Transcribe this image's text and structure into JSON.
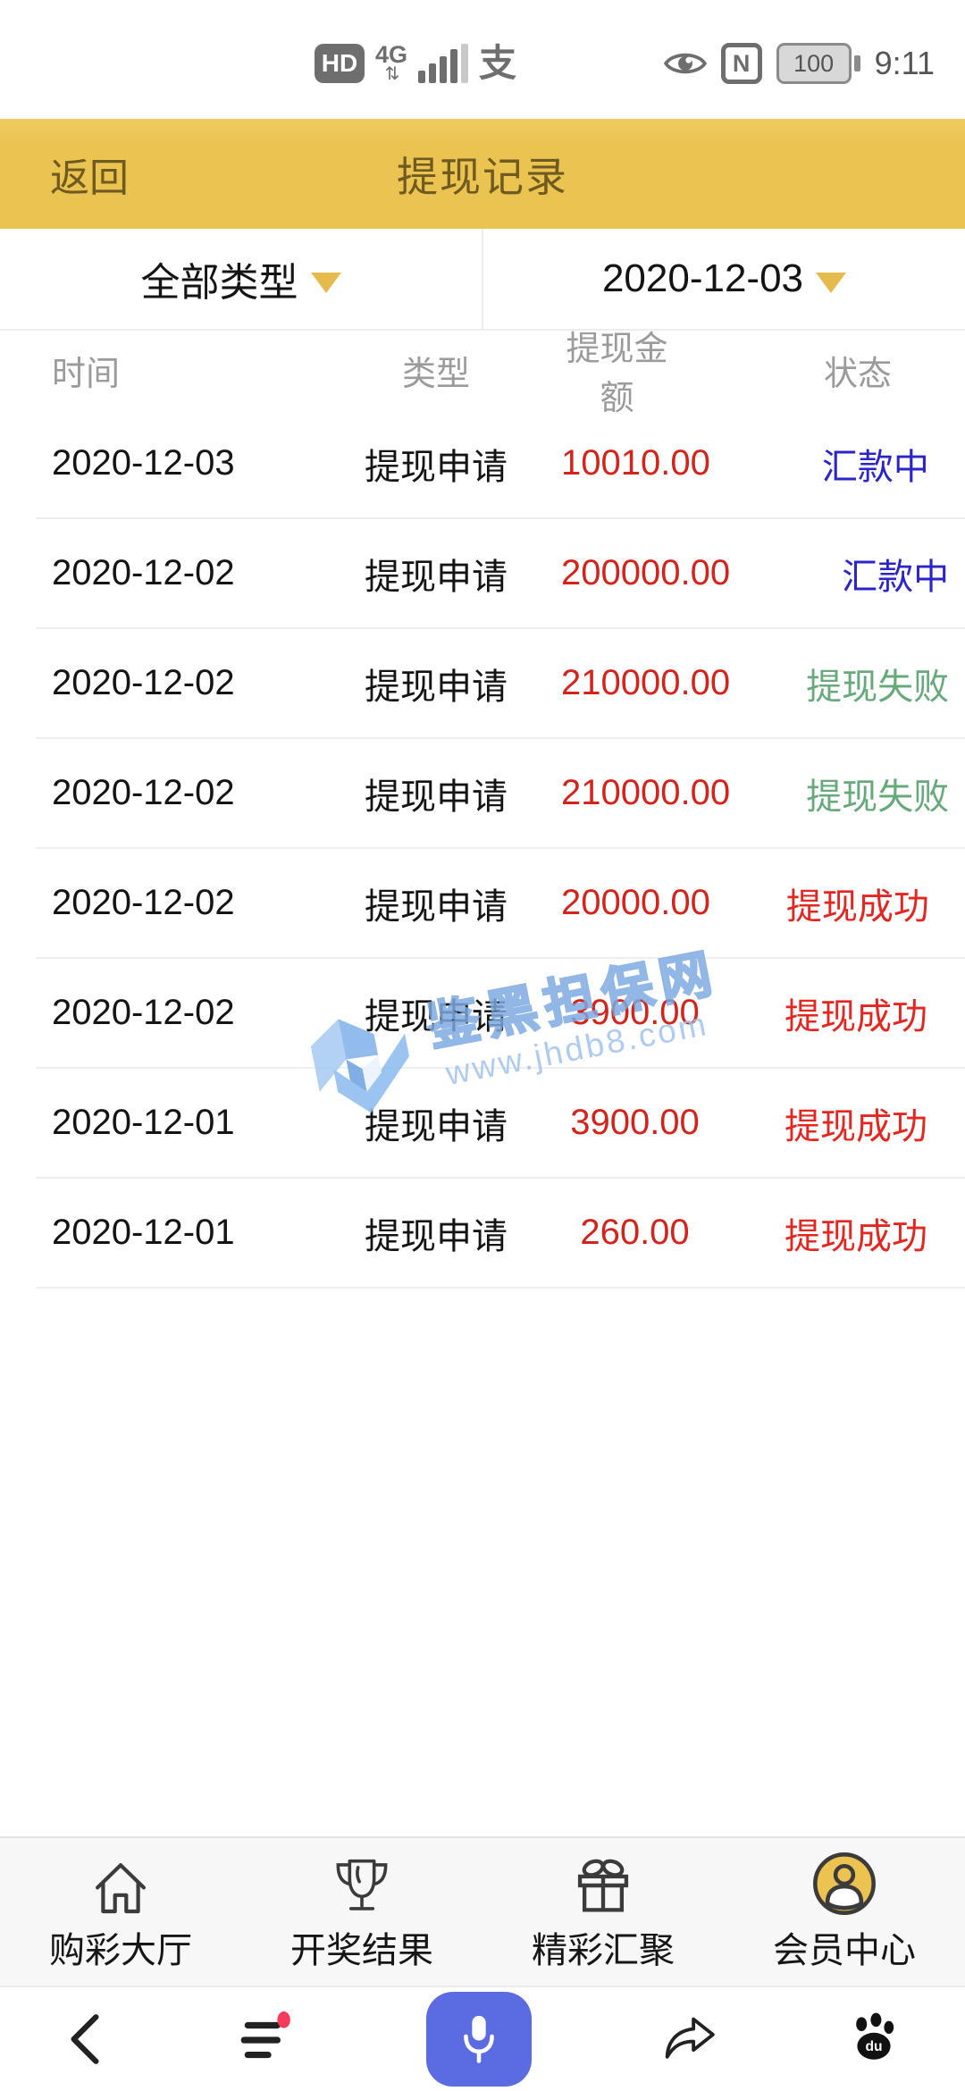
{
  "colors": {
    "accent_yellow": "#EBC351",
    "appbar_text": "#6F5B20",
    "amount_red": "#D3241C",
    "status_blue": "#2B25C8",
    "status_green": "#67A97B",
    "status_red": "#E42620",
    "mic_blue": "#5B6BE1",
    "watermark_blue": "#A4C6EE"
  },
  "status_bar": {
    "hd_label": "HD",
    "network_type": "4G",
    "network_arrows": "⇅",
    "alipay_glyph": "支",
    "nfc_letter": "N",
    "battery_level": "100",
    "time": "9:11"
  },
  "app_bar": {
    "back_label": "返回",
    "title": "提现记录"
  },
  "filters": {
    "type_selected": "全部类型",
    "date_selected": "2020-12-03"
  },
  "table": {
    "headers": [
      "时间",
      "类型",
      "提现金额",
      "状态"
    ],
    "rows": [
      {
        "date": "2020-12-03",
        "type": "提现申请",
        "amount": "10010.00",
        "status": "汇款中",
        "status_color": "#2B25C8"
      },
      {
        "date": "2020-12-02",
        "type": "提现申请",
        "amount": "200000.00",
        "status": "汇款中",
        "status_color": "#2B25C8"
      },
      {
        "date": "2020-12-02",
        "type": "提现申请",
        "amount": "210000.00",
        "status": "提现失败",
        "status_color": "#67A97B"
      },
      {
        "date": "2020-12-02",
        "type": "提现申请",
        "amount": "210000.00",
        "status": "提现失败",
        "status_color": "#67A97B"
      },
      {
        "date": "2020-12-02",
        "type": "提现申请",
        "amount": "20000.00",
        "status": "提现成功",
        "status_color": "#E42620"
      },
      {
        "date": "2020-12-02",
        "type": "提现申请",
        "amount": "3900.00",
        "status": "提现成功",
        "status_color": "#E42620"
      },
      {
        "date": "2020-12-01",
        "type": "提现申请",
        "amount": "3900.00",
        "status": "提现成功",
        "status_color": "#E42620"
      },
      {
        "date": "2020-12-01",
        "type": "提现申请",
        "amount": "260.00",
        "status": "提现成功",
        "status_color": "#E42620"
      }
    ]
  },
  "watermark": {
    "site_name": "鉴黑担保网",
    "site_url": "www.jhdb8.com"
  },
  "bottom_nav": {
    "items": [
      {
        "label": "购彩大厅",
        "icon": "home",
        "active": false
      },
      {
        "label": "开奖结果",
        "icon": "trophy",
        "active": false
      },
      {
        "label": "精彩汇聚",
        "icon": "gift",
        "active": false
      },
      {
        "label": "会员中心",
        "icon": "member",
        "active": true
      }
    ]
  },
  "system_nav": {
    "paw_label": "du",
    "items": [
      {
        "icon": "back"
      },
      {
        "icon": "menu-badge"
      },
      {
        "icon": "mic"
      },
      {
        "icon": "share"
      },
      {
        "icon": "paw"
      }
    ]
  }
}
